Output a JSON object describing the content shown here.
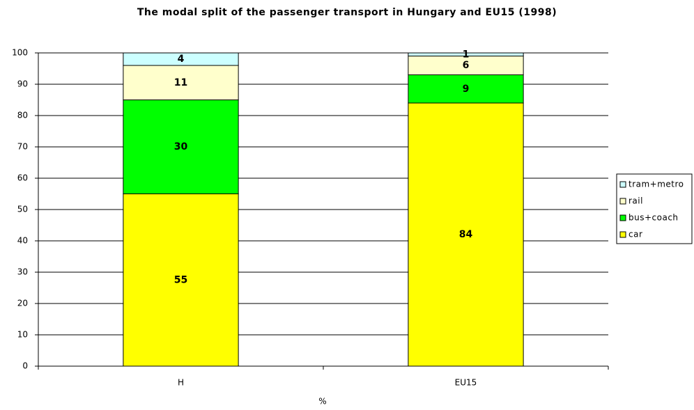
{
  "chart_data": {
    "type": "stacked_bar",
    "title": "The modal split of the passenger transport in Hungary and EU15 (1998)",
    "x_label": "%",
    "categories": [
      "H",
      "EU15"
    ],
    "series": [
      {
        "name": "car",
        "color": "#ffff00",
        "values": [
          55,
          84
        ]
      },
      {
        "name": "bus+coach",
        "color": "#00ff00",
        "values": [
          30,
          9
        ]
      },
      {
        "name": "rail",
        "color": "#ffffcc",
        "values": [
          11,
          6
        ]
      },
      {
        "name": "tram+metro",
        "color": "#ccffff",
        "values": [
          4,
          1
        ]
      }
    ],
    "ylim": [
      0,
      100
    ],
    "yticks": [
      0,
      10,
      20,
      30,
      40,
      50,
      60,
      70,
      80,
      90,
      100
    ],
    "grid": true,
    "legend": "right"
  }
}
